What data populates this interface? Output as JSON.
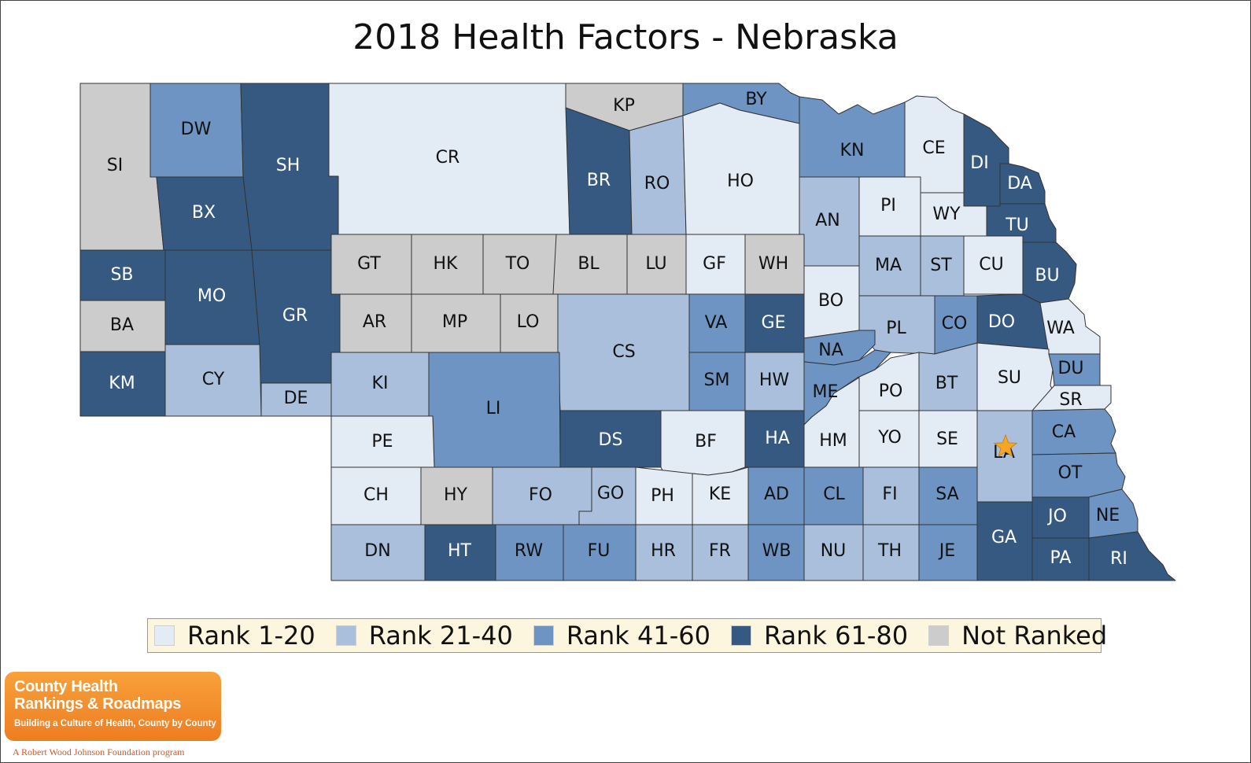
{
  "title": "2018 Health Factors - Nebraska",
  "colors": {
    "r1": "#e3ebf5",
    "r2": "#a9bfdc",
    "r3": "#6d94c3",
    "r4": "#365982",
    "nr": "#cccccc",
    "border": "#333333",
    "star": "#f5a623"
  },
  "legend": [
    {
      "key": "r1",
      "label": "Rank 1-20"
    },
    {
      "key": "r2",
      "label": "Rank 21-40"
    },
    {
      "key": "r3",
      "label": "Rank 41-60"
    },
    {
      "key": "r4",
      "label": "Rank 61-80"
    },
    {
      "key": "nr",
      "label": "Not Ranked"
    }
  ],
  "counties": [
    {
      "abbr": "SI",
      "cat": "nr"
    },
    {
      "abbr": "DW",
      "cat": "r3"
    },
    {
      "abbr": "SH",
      "cat": "r4"
    },
    {
      "abbr": "BX",
      "cat": "r4"
    },
    {
      "abbr": "SB",
      "cat": "r4"
    },
    {
      "abbr": "BA",
      "cat": "nr"
    },
    {
      "abbr": "MO",
      "cat": "r4"
    },
    {
      "abbr": "GR",
      "cat": "r4"
    },
    {
      "abbr": "KM",
      "cat": "r4"
    },
    {
      "abbr": "CY",
      "cat": "r2"
    },
    {
      "abbr": "DE",
      "cat": "r2"
    },
    {
      "abbr": "CR",
      "cat": "r1"
    },
    {
      "abbr": "KP",
      "cat": "nr"
    },
    {
      "abbr": "BR",
      "cat": "r4"
    },
    {
      "abbr": "RO",
      "cat": "r2"
    },
    {
      "abbr": "BY",
      "cat": "r3"
    },
    {
      "abbr": "HO",
      "cat": "r1"
    },
    {
      "abbr": "KN",
      "cat": "r3"
    },
    {
      "abbr": "CE",
      "cat": "r1"
    },
    {
      "abbr": "DI",
      "cat": "r4"
    },
    {
      "abbr": "DA",
      "cat": "r4"
    },
    {
      "abbr": "TU",
      "cat": "r4"
    },
    {
      "abbr": "AN",
      "cat": "r2"
    },
    {
      "abbr": "PI",
      "cat": "r1"
    },
    {
      "abbr": "WY",
      "cat": "r1"
    },
    {
      "abbr": "GT",
      "cat": "nr"
    },
    {
      "abbr": "HK",
      "cat": "nr"
    },
    {
      "abbr": "TO",
      "cat": "nr"
    },
    {
      "abbr": "BL",
      "cat": "nr"
    },
    {
      "abbr": "LU",
      "cat": "nr"
    },
    {
      "abbr": "GF",
      "cat": "r1"
    },
    {
      "abbr": "WH",
      "cat": "nr"
    },
    {
      "abbr": "MA",
      "cat": "r2"
    },
    {
      "abbr": "ST",
      "cat": "r2"
    },
    {
      "abbr": "CU",
      "cat": "r1"
    },
    {
      "abbr": "BU",
      "cat": "r4"
    },
    {
      "abbr": "AR",
      "cat": "nr"
    },
    {
      "abbr": "MP",
      "cat": "nr"
    },
    {
      "abbr": "LO",
      "cat": "nr"
    },
    {
      "abbr": "CS",
      "cat": "r2"
    },
    {
      "abbr": "VA",
      "cat": "r3"
    },
    {
      "abbr": "GE",
      "cat": "r4"
    },
    {
      "abbr": "BO",
      "cat": "r1"
    },
    {
      "abbr": "PL",
      "cat": "r2"
    },
    {
      "abbr": "CO",
      "cat": "r3"
    },
    {
      "abbr": "DO",
      "cat": "r4"
    },
    {
      "abbr": "WA",
      "cat": "r1"
    },
    {
      "abbr": "NA",
      "cat": "r3"
    },
    {
      "abbr": "KI",
      "cat": "r2"
    },
    {
      "abbr": "LI",
      "cat": "r3"
    },
    {
      "abbr": "SM",
      "cat": "r3"
    },
    {
      "abbr": "HW",
      "cat": "r2"
    },
    {
      "abbr": "ME",
      "cat": "r3"
    },
    {
      "abbr": "PO",
      "cat": "r1"
    },
    {
      "abbr": "BT",
      "cat": "r2"
    },
    {
      "abbr": "SU",
      "cat": "r1"
    },
    {
      "abbr": "DU",
      "cat": "r3"
    },
    {
      "abbr": "SR",
      "cat": "r1"
    },
    {
      "abbr": "PE",
      "cat": "r1"
    },
    {
      "abbr": "DS",
      "cat": "r4"
    },
    {
      "abbr": "BF",
      "cat": "r1"
    },
    {
      "abbr": "HA",
      "cat": "r4"
    },
    {
      "abbr": "HM",
      "cat": "r1"
    },
    {
      "abbr": "YO",
      "cat": "r1"
    },
    {
      "abbr": "SE",
      "cat": "r1"
    },
    {
      "abbr": "LA",
      "cat": "r2"
    },
    {
      "abbr": "CA",
      "cat": "r3"
    },
    {
      "abbr": "CH",
      "cat": "r1"
    },
    {
      "abbr": "HY",
      "cat": "nr"
    },
    {
      "abbr": "FO",
      "cat": "r2"
    },
    {
      "abbr": "GO",
      "cat": "r2"
    },
    {
      "abbr": "PH",
      "cat": "r1"
    },
    {
      "abbr": "KE",
      "cat": "r1"
    },
    {
      "abbr": "AD",
      "cat": "r3"
    },
    {
      "abbr": "CL",
      "cat": "r3"
    },
    {
      "abbr": "FI",
      "cat": "r2"
    },
    {
      "abbr": "SA",
      "cat": "r3"
    },
    {
      "abbr": "OT",
      "cat": "r3"
    },
    {
      "abbr": "GA",
      "cat": "r4"
    },
    {
      "abbr": "JO",
      "cat": "r4"
    },
    {
      "abbr": "NE",
      "cat": "r3"
    },
    {
      "abbr": "DN",
      "cat": "r2"
    },
    {
      "abbr": "HT",
      "cat": "r4"
    },
    {
      "abbr": "RW",
      "cat": "r3"
    },
    {
      "abbr": "FU",
      "cat": "r3"
    },
    {
      "abbr": "HR",
      "cat": "r2"
    },
    {
      "abbr": "FR",
      "cat": "r2"
    },
    {
      "abbr": "WB",
      "cat": "r3"
    },
    {
      "abbr": "NU",
      "cat": "r2"
    },
    {
      "abbr": "TH",
      "cat": "r2"
    },
    {
      "abbr": "JE",
      "cat": "r3"
    },
    {
      "abbr": "PA",
      "cat": "r4"
    },
    {
      "abbr": "RI",
      "cat": "r4"
    }
  ],
  "capital_marker": {
    "county": "LA",
    "icon": "star-icon"
  },
  "logo": {
    "line1": "County Health",
    "line2": "Rankings & Roadmaps",
    "tagline": "Building a Culture of Health, County by County",
    "sponsor": "A Robert Wood Johnson Foundation program"
  }
}
